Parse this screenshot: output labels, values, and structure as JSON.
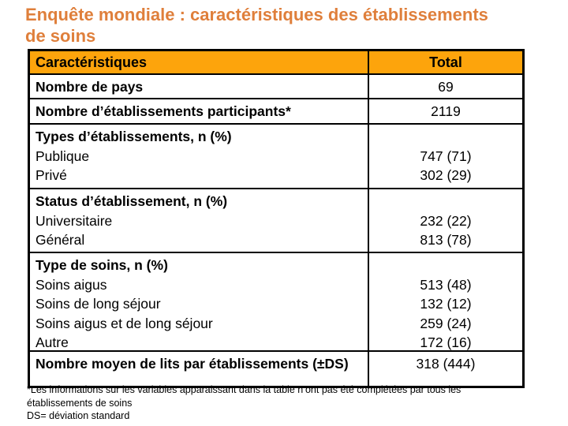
{
  "slide": {
    "title_lines": [
      "Enquête mondiale : caractéristiques des établissements",
      "de soins"
    ]
  },
  "table": {
    "header": {
      "col1": "Caractéristiques",
      "col2": "Total"
    },
    "rows": [
      {
        "label": "Nombre de pays",
        "items": [],
        "values": [
          "69"
        ]
      },
      {
        "label": "Nombre d’établissements participants*",
        "items": [],
        "values": [
          "2119"
        ]
      },
      {
        "label": "Types d’établissements, n (%)",
        "items": [
          "Publique",
          "Privé"
        ],
        "values": [
          "",
          "747 (71)",
          "302 (29)"
        ]
      },
      {
        "label": "Status d’établissement, n (%)",
        "items": [
          "Universitaire",
          "Général"
        ],
        "values": [
          "",
          "232 (22)",
          "813 (78)"
        ]
      },
      {
        "label": "Type de soins, n (%)",
        "items": [
          "Soins aigus",
          "Soins de long séjour",
          "Soins aigus et de long séjour",
          "Autre"
        ],
        "values": [
          "",
          "513 (48)",
          "132 (12)",
          "259 (24)",
          "172 (16)"
        ]
      },
      {
        "label": "Nombre moyen de lits par établissements (±DS)",
        "items": [],
        "values": [
          "318 (444)"
        ]
      }
    ]
  },
  "footnotes": {
    "lines": [
      "*Les informations sur les variables apparaissant dans la table n’ont pas été complétées par tous les",
      "établissements de soins",
      "DS=  déviation standard"
    ]
  },
  "colors": {
    "title": "#DF7F3B",
    "header_bg": "#FDA40C",
    "border": "#000000"
  }
}
